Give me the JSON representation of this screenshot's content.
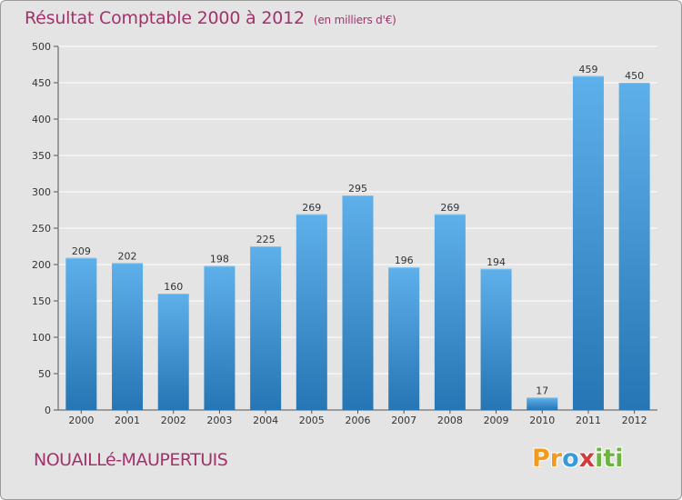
{
  "title": "Résultat Comptable 2000 à 2012",
  "unit": "(en milliers d'€)",
  "place_name": "NOUAILLé-MAUPERTUIS",
  "logo": {
    "letters": [
      "P",
      "r",
      "o",
      "x",
      "i",
      "t",
      "i"
    ],
    "colors": [
      "#f29a1f",
      "#f29a1f",
      "#3a9ad9",
      "#d23c3c",
      "#6cb33f",
      "#6cb33f",
      "#6cb33f"
    ]
  },
  "colors": {
    "bar_top": "#5eb0ea",
    "bar_bottom": "#2675b4",
    "title": "#a0336b",
    "background": "#e4e4e4"
  },
  "chart_data": {
    "type": "bar",
    "title": "Résultat Comptable 2000 à 2012",
    "xlabel": "",
    "ylabel": "",
    "categories": [
      "2000",
      "2001",
      "2002",
      "2003",
      "2004",
      "2005",
      "2006",
      "2007",
      "2008",
      "2009",
      "2010",
      "2011",
      "2012"
    ],
    "values": [
      209,
      202,
      160,
      198,
      225,
      269,
      295,
      196,
      269,
      194,
      17,
      459,
      450
    ],
    "ylim": [
      0,
      500
    ],
    "yticks": [
      0,
      50,
      100,
      150,
      200,
      250,
      300,
      350,
      400,
      450,
      500
    ],
    "grid": true
  }
}
